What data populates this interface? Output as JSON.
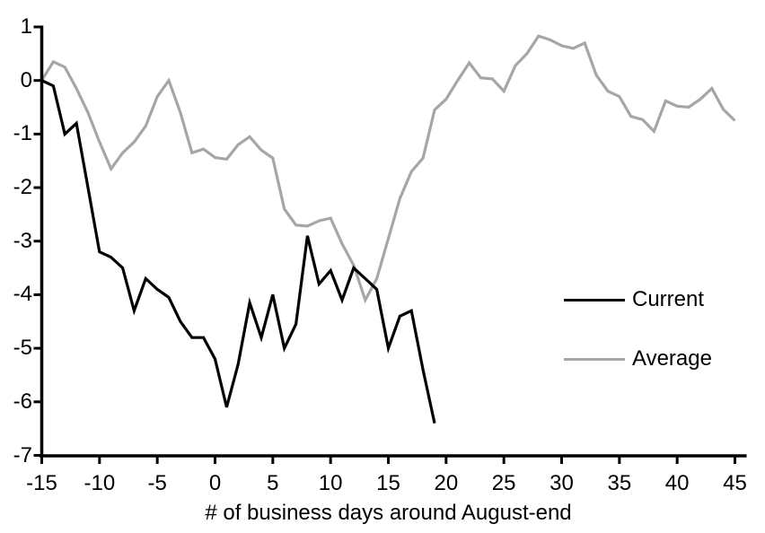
{
  "chart": {
    "xlabel": "# of business days around August-end",
    "legend": {
      "current_label": "Current",
      "average_label": "Average"
    },
    "colors": {
      "current": "#000000",
      "average": "#a6a6a6",
      "axis": "#000000",
      "background": "#ffffff"
    }
  },
  "chart_data": {
    "type": "line",
    "title": "",
    "xlabel": "# of business days around August-end",
    "ylabel": "",
    "xlim": [
      -15,
      45
    ],
    "ylim": [
      -7,
      1
    ],
    "x_ticks": [
      -15,
      -10,
      -5,
      0,
      5,
      10,
      15,
      20,
      25,
      30,
      35,
      40,
      45
    ],
    "y_ticks": [
      1,
      0,
      -1,
      -2,
      -3,
      -4,
      -5,
      -6,
      -7
    ],
    "grid": false,
    "legend_position": "right-middle",
    "series": [
      {
        "name": "Average",
        "color": "#a6a6a6",
        "x": [
          -15,
          -14,
          -13,
          -12,
          -11,
          -10,
          -9,
          -8,
          -7,
          -6,
          -5,
          -4,
          -3,
          -2,
          -1,
          0,
          1,
          2,
          3,
          4,
          5,
          6,
          7,
          8,
          9,
          10,
          11,
          12,
          13,
          14,
          15,
          16,
          17,
          18,
          19,
          20,
          21,
          22,
          23,
          24,
          25,
          26,
          27,
          28,
          29,
          30,
          31,
          32,
          33,
          34,
          35,
          36,
          37,
          38,
          39,
          40,
          41,
          42,
          43,
          44,
          45
        ],
        "values": [
          0,
          0.35,
          0.25,
          -0.15,
          -0.6,
          -1.15,
          -1.65,
          -1.35,
          -1.15,
          -0.85,
          -0.3,
          0,
          -0.6,
          -1.35,
          -1.28,
          -1.44,
          -1.47,
          -1.2,
          -1.05,
          -1.3,
          -1.45,
          -2.4,
          -2.7,
          -2.72,
          -2.62,
          -2.57,
          -3.05,
          -3.45,
          -4.1,
          -3.7,
          -2.95,
          -2.2,
          -1.7,
          -1.45,
          -0.55,
          -0.35,
          0,
          0.33,
          0.05,
          0.03,
          -0.2,
          0.28,
          0.5,
          0.83,
          0.76,
          0.65,
          0.6,
          0.7,
          0.1,
          -0.2,
          -0.3,
          -0.67,
          -0.73,
          -0.95,
          -0.38,
          -0.48,
          -0.5,
          -0.35,
          -0.15,
          -0.54,
          -0.75
        ]
      },
      {
        "name": "Current",
        "color": "#000000",
        "x": [
          -15,
          -14,
          -13,
          -12,
          -11,
          -10,
          -9,
          -8,
          -7,
          -6,
          -5,
          -4,
          -3,
          -2,
          -1,
          0,
          1,
          2,
          3,
          4,
          5,
          6,
          7,
          8,
          9,
          10,
          11,
          12,
          13,
          14,
          15,
          16,
          17,
          18,
          19
        ],
        "values": [
          0,
          -0.1,
          -1.0,
          -0.8,
          -2.0,
          -3.2,
          -3.3,
          -3.5,
          -4.3,
          -3.7,
          -3.9,
          -4.05,
          -4.5,
          -4.8,
          -4.8,
          -5.2,
          -6.1,
          -5.3,
          -4.15,
          -4.8,
          -4.0,
          -5.0,
          -4.55,
          -2.9,
          -3.8,
          -3.55,
          -4.1,
          -3.5,
          -3.7,
          -3.9,
          -5.0,
          -4.4,
          -4.3,
          -5.4,
          -6.4
        ]
      }
    ]
  }
}
